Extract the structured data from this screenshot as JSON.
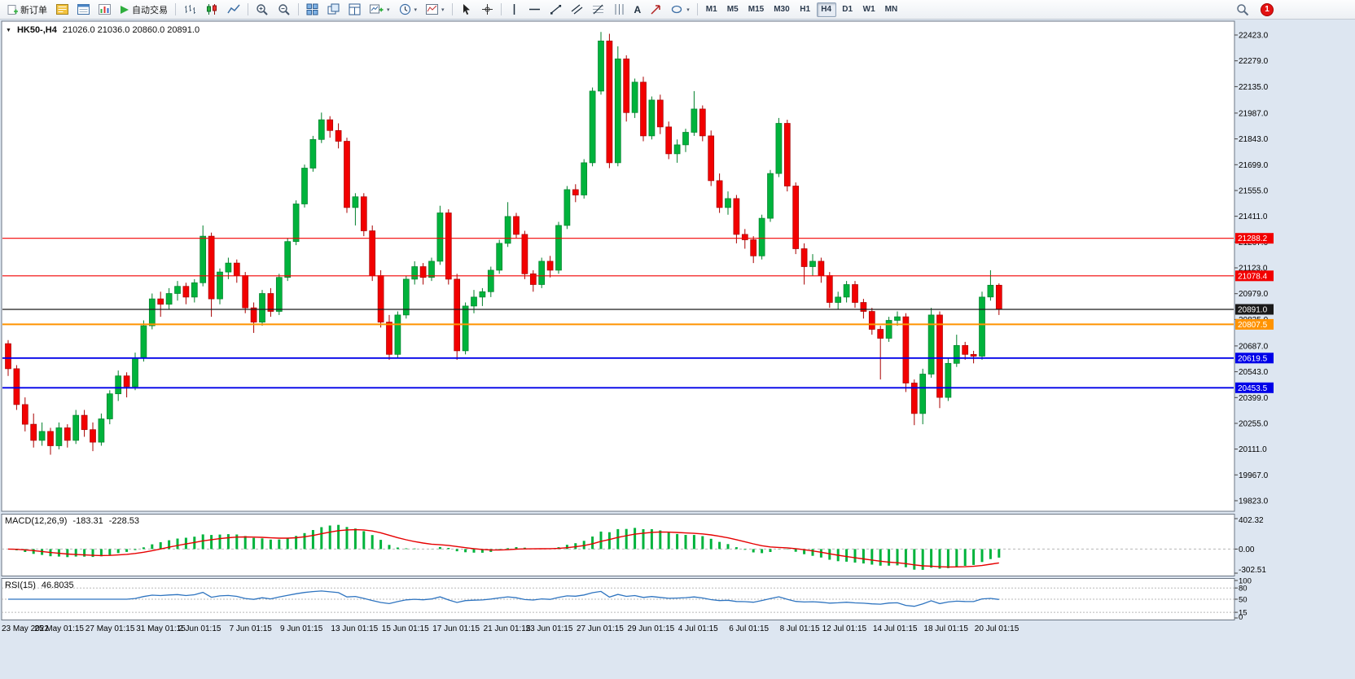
{
  "toolbar": {
    "new_order_label": "新订单",
    "auto_trading_label": "自动交易",
    "timeframes": [
      "M1",
      "M5",
      "M15",
      "M30",
      "H1",
      "H4",
      "D1",
      "W1",
      "MN"
    ],
    "selected_timeframe": "H4",
    "notification_count": "1",
    "icon_names": [
      "new-order",
      "market-watch",
      "data-window",
      "navigator",
      "auto-trading",
      "bar-chart",
      "candlestick-chart",
      "line-chart",
      "zoom-in",
      "zoom-out",
      "tile-windows",
      "cascade-windows",
      "arrange-windows",
      "new-chart",
      "periods",
      "templates",
      "cursor",
      "crosshair",
      "vertical-line",
      "horizontal-line",
      "trendline",
      "equidistant-channel",
      "fibonacci-retracement",
      "cycle-lines",
      "text",
      "arrows",
      "shapes",
      "search",
      "notification"
    ]
  },
  "glyphs": {
    "dropdown": "▾",
    "collapse_triangle": "▼",
    "text_tool": "A"
  },
  "chart_header": {
    "symbol_period": "HK50-,H4",
    "ohlc": "21026.0 21036.0 20860.0 20891.0"
  },
  "price_axis": {
    "ticks": [
      "22423.0",
      "22279.0",
      "22135.0",
      "21987.0",
      "21843.0",
      "21699.0",
      "21555.0",
      "21411.0",
      "21267.0",
      "21123.0",
      "20979.0",
      "20835.0",
      "20687.0",
      "20543.0",
      "20399.0",
      "20255.0",
      "20111.0",
      "19967.0",
      "19823.0"
    ]
  },
  "time_axis": {
    "labels": [
      "23 May 2022",
      "25 May 01:15",
      "27 May 01:15",
      "31 May 01:15",
      "2 Jun 01:15",
      "7 Jun 01:15",
      "9 Jun 01:15",
      "13 Jun 01:15",
      "15 Jun 01:15",
      "17 Jun 01:15",
      "21 Jun 01:15",
      "23 Jun 01:15",
      "27 Jun 01:15",
      "29 Jun 01:15",
      "4 Jul 01:15",
      "6 Jul 01:15",
      "8 Jul 01:15",
      "12 Jul 01:15",
      "14 Jul 01:15",
      "18 Jul 01:15",
      "20 Jul 01:15"
    ]
  },
  "hlines": [
    {
      "price": 21288.2,
      "label": "21288.2",
      "color": "#f20000",
      "width": 1.2
    },
    {
      "price": 21078.4,
      "label": "21078.4",
      "color": "#f20000",
      "width": 1.2
    },
    {
      "price": 20891.0,
      "label": "20891.0",
      "color": "#1a1a1a",
      "width": 1.3
    },
    {
      "price": 20807.5,
      "label": "20807.5",
      "color": "#ff9300",
      "width": 2
    },
    {
      "price": 20619.5,
      "label": "20619.5",
      "color": "#0000e8",
      "width": 1.8
    },
    {
      "price": 20453.5,
      "label": "20453.5",
      "color": "#0000e8",
      "width": 1.8
    }
  ],
  "macd": {
    "label": "MACD(12,26,9)",
    "value": "-183.31",
    "signal_value": "-228.53",
    "axis": [
      "402.32",
      "0.00",
      "-302.51"
    ],
    "range": [
      -302.51,
      402.32
    ],
    "histogram_color": "#00b33c",
    "signal_color": "#e60000"
  },
  "rsi": {
    "label": "RSI(15)",
    "value": "46.8035",
    "axis": [
      "100",
      "80",
      "50",
      "15",
      "0"
    ],
    "levels": [
      80,
      50,
      15
    ],
    "line_color": "#2e74c0"
  },
  "chart_data": {
    "type": "candlestick",
    "symbol": "HK50-",
    "timeframe": "H4",
    "last_ohlc": {
      "open": 21026.0,
      "high": 21036.0,
      "low": 20860.0,
      "close": 20891.0
    },
    "price_range": [
      19823.0,
      22423.0
    ],
    "up_color": "#00b33c",
    "up_border": "#007f2a",
    "down_color": "#f20000",
    "down_border": "#a80000",
    "candles": [
      [
        20700,
        20720,
        20520,
        20560
      ],
      [
        20560,
        20580,
        20330,
        20360
      ],
      [
        20360,
        20400,
        20210,
        20250
      ],
      [
        20250,
        20310,
        20120,
        20160
      ],
      [
        20160,
        20260,
        20130,
        20210
      ],
      [
        20210,
        20230,
        20080,
        20130
      ],
      [
        20130,
        20260,
        20110,
        20230
      ],
      [
        20230,
        20250,
        20120,
        20160
      ],
      [
        20160,
        20330,
        20140,
        20300
      ],
      [
        20300,
        20330,
        20180,
        20220
      ],
      [
        20220,
        20260,
        20100,
        20150
      ],
      [
        20150,
        20310,
        20130,
        20280
      ],
      [
        20280,
        20440,
        20250,
        20420
      ],
      [
        20420,
        20550,
        20380,
        20520
      ],
      [
        20520,
        20540,
        20400,
        20460
      ],
      [
        20460,
        20650,
        20440,
        20620
      ],
      [
        20620,
        20830,
        20600,
        20800
      ],
      [
        20800,
        20980,
        20780,
        20950
      ],
      [
        20950,
        20990,
        20850,
        20920
      ],
      [
        20920,
        21010,
        20890,
        20980
      ],
      [
        20980,
        21050,
        20940,
        21020
      ],
      [
        21020,
        21040,
        20920,
        20960
      ],
      [
        20960,
        21060,
        20930,
        21040
      ],
      [
        21040,
        21360,
        21020,
        21300
      ],
      [
        21300,
        21320,
        20850,
        20950
      ],
      [
        20950,
        21120,
        20920,
        21100
      ],
      [
        21100,
        21180,
        21060,
        21150
      ],
      [
        21150,
        21170,
        21040,
        21080
      ],
      [
        21080,
        21100,
        20870,
        20900
      ],
      [
        20900,
        20930,
        20760,
        20820
      ],
      [
        20820,
        21000,
        20800,
        20980
      ],
      [
        20980,
        21010,
        20850,
        20880
      ],
      [
        20880,
        21090,
        20860,
        21070
      ],
      [
        21070,
        21290,
        21050,
        21270
      ],
      [
        21270,
        21500,
        21250,
        21480
      ],
      [
        21480,
        21700,
        21460,
        21680
      ],
      [
        21680,
        21860,
        21660,
        21840
      ],
      [
        21840,
        21990,
        21820,
        21950
      ],
      [
        21950,
        21970,
        21850,
        21890
      ],
      [
        21890,
        21930,
        21790,
        21830
      ],
      [
        21830,
        21850,
        21430,
        21460
      ],
      [
        21460,
        21540,
        21360,
        21520
      ],
      [
        21520,
        21540,
        21300,
        21330
      ],
      [
        21330,
        21360,
        21050,
        21080
      ],
      [
        21080,
        21110,
        20790,
        20820
      ],
      [
        20820,
        20860,
        20610,
        20640
      ],
      [
        20640,
        20880,
        20620,
        20860
      ],
      [
        20860,
        21080,
        20840,
        21060
      ],
      [
        21060,
        21160,
        21030,
        21130
      ],
      [
        21130,
        21150,
        21030,
        21070
      ],
      [
        21070,
        21180,
        21050,
        21160
      ],
      [
        21160,
        21470,
        21140,
        21430
      ],
      [
        21430,
        21450,
        21030,
        21060
      ],
      [
        21060,
        21090,
        20610,
        20660
      ],
      [
        20660,
        20930,
        20640,
        20910
      ],
      [
        20910,
        21000,
        20870,
        20960
      ],
      [
        20960,
        21010,
        20910,
        20990
      ],
      [
        20990,
        21130,
        20960,
        21110
      ],
      [
        21110,
        21280,
        21090,
        21260
      ],
      [
        21260,
        21490,
        21240,
        21410
      ],
      [
        21410,
        21430,
        21290,
        21310
      ],
      [
        21310,
        21330,
        21060,
        21090
      ],
      [
        21090,
        21110,
        20990,
        21030
      ],
      [
        21030,
        21180,
        21010,
        21160
      ],
      [
        21160,
        21190,
        21070,
        21110
      ],
      [
        21110,
        21380,
        21090,
        21360
      ],
      [
        21360,
        21580,
        21340,
        21560
      ],
      [
        21560,
        21590,
        21490,
        21530
      ],
      [
        21530,
        21730,
        21510,
        21710
      ],
      [
        21710,
        22130,
        21690,
        22110
      ],
      [
        22110,
        22440,
        22090,
        22390
      ],
      [
        22390,
        22430,
        21680,
        21710
      ],
      [
        21710,
        22360,
        21690,
        22290
      ],
      [
        22290,
        22310,
        21940,
        21990
      ],
      [
        21990,
        22180,
        21960,
        22160
      ],
      [
        22160,
        22190,
        21830,
        21860
      ],
      [
        21860,
        22080,
        21840,
        22060
      ],
      [
        22060,
        22090,
        21870,
        21910
      ],
      [
        21910,
        21940,
        21730,
        21760
      ],
      [
        21760,
        21840,
        21710,
        21810
      ],
      [
        21810,
        21900,
        21770,
        21880
      ],
      [
        21880,
        22110,
        21860,
        22010
      ],
      [
        22010,
        22030,
        21830,
        21860
      ],
      [
        21860,
        21890,
        21580,
        21610
      ],
      [
        21610,
        21650,
        21430,
        21460
      ],
      [
        21460,
        21550,
        21420,
        21510
      ],
      [
        21510,
        21530,
        21260,
        21310
      ],
      [
        21310,
        21340,
        21230,
        21280
      ],
      [
        21280,
        21300,
        21150,
        21190
      ],
      [
        21190,
        21420,
        21170,
        21400
      ],
      [
        21400,
        21670,
        21380,
        21650
      ],
      [
        21650,
        21960,
        21630,
        21930
      ],
      [
        21930,
        21950,
        21550,
        21580
      ],
      [
        21580,
        21600,
        21200,
        21230
      ],
      [
        21230,
        21260,
        21030,
        21130
      ],
      [
        21130,
        21200,
        21080,
        21160
      ],
      [
        21160,
        21180,
        21040,
        21080
      ],
      [
        21080,
        21100,
        20900,
        20930
      ],
      [
        20930,
        20990,
        20890,
        20960
      ],
      [
        20960,
        21050,
        20930,
        21030
      ],
      [
        21030,
        21050,
        20900,
        20930
      ],
      [
        20930,
        20950,
        20840,
        20880
      ],
      [
        20880,
        20900,
        20750,
        20780
      ],
      [
        20780,
        20800,
        20500,
        20730
      ],
      [
        20730,
        20850,
        20710,
        20830
      ],
      [
        20830,
        20880,
        20800,
        20850
      ],
      [
        20850,
        20870,
        20430,
        20480
      ],
      [
        20480,
        20500,
        20245,
        20310
      ],
      [
        20310,
        20560,
        20250,
        20530
      ],
      [
        20530,
        20900,
        20510,
        20860
      ],
      [
        20860,
        20880,
        20340,
        20400
      ],
      [
        20400,
        20620,
        20380,
        20590
      ],
      [
        20590,
        20750,
        20570,
        20690
      ],
      [
        20690,
        20710,
        20610,
        20640
      ],
      [
        20640,
        20660,
        20590,
        20630
      ],
      [
        20630,
        20990,
        20610,
        20960
      ],
      [
        20960,
        21110,
        20940,
        21026
      ],
      [
        21026,
        21036,
        20860,
        20891
      ]
    ]
  }
}
